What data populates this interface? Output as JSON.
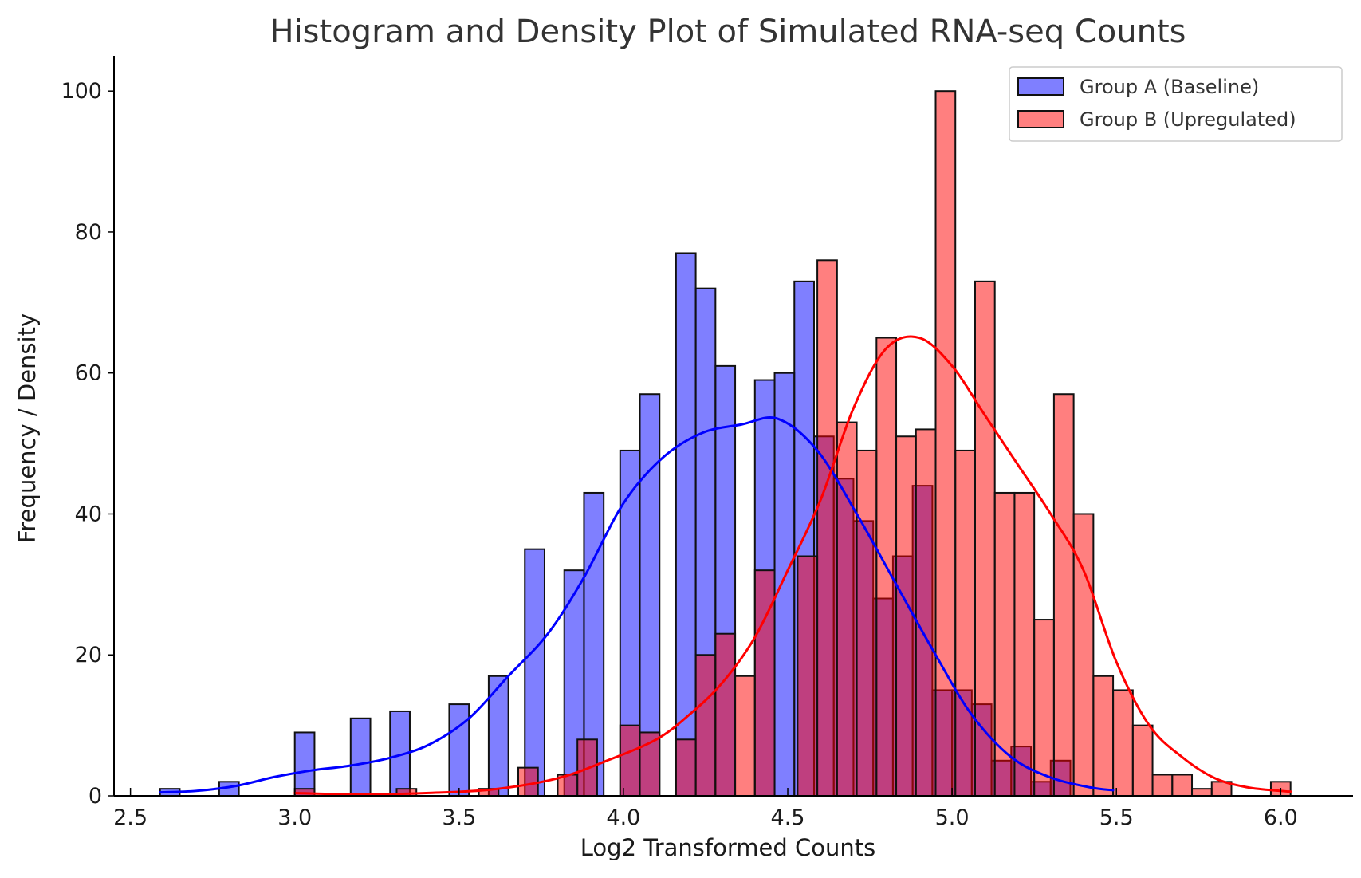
{
  "chart_data": {
    "type": "histogram",
    "title": "Histogram and Density Plot of Simulated RNA-seq Counts",
    "xlabel": "Log2 Transformed Counts",
    "ylabel": "Frequency / Density",
    "xlim": [
      2.45,
      6.22
    ],
    "ylim": [
      0,
      105
    ],
    "xticks": [
      "2.5",
      "3.0",
      "3.5",
      "4.0",
      "4.5",
      "5.0",
      "5.5",
      "6.0"
    ],
    "yticks": [
      "0",
      "20",
      "40",
      "60",
      "80",
      "100"
    ],
    "legend_position": "top-right",
    "series": [
      {
        "name": "Group A (Baseline)",
        "color": "#0000ff",
        "fill": "#8080ff",
        "edge": "#111111",
        "bins": [
          {
            "x0": 2.59,
            "x1": 2.65,
            "count": 1
          },
          {
            "x0": 2.77,
            "x1": 2.83,
            "count": 2
          },
          {
            "x0": 3.0,
            "x1": 3.06,
            "count": 9
          },
          {
            "x0": 3.17,
            "x1": 3.23,
            "count": 11
          },
          {
            "x0": 3.29,
            "x1": 3.35,
            "count": 12
          },
          {
            "x0": 3.47,
            "x1": 3.53,
            "count": 13
          },
          {
            "x0": 3.59,
            "x1": 3.65,
            "count": 17
          },
          {
            "x0": 3.7,
            "x1": 3.76,
            "count": 35
          },
          {
            "x0": 3.82,
            "x1": 3.88,
            "count": 32
          },
          {
            "x0": 3.88,
            "x1": 3.94,
            "count": 43
          },
          {
            "x0": 3.99,
            "x1": 4.05,
            "count": 49
          },
          {
            "x0": 4.05,
            "x1": 4.11,
            "count": 57
          },
          {
            "x0": 4.16,
            "x1": 4.22,
            "count": 77
          },
          {
            "x0": 4.22,
            "x1": 4.28,
            "count": 72
          },
          {
            "x0": 4.28,
            "x1": 4.34,
            "count": 61
          },
          {
            "x0": 4.4,
            "x1": 4.46,
            "count": 59
          },
          {
            "x0": 4.46,
            "x1": 4.52,
            "count": 60
          },
          {
            "x0": 4.52,
            "x1": 4.58,
            "count": 73
          },
          {
            "x0": 4.58,
            "x1": 4.64,
            "count": 51
          },
          {
            "x0": 4.64,
            "x1": 4.7,
            "count": 45
          },
          {
            "x0": 4.7,
            "x1": 4.76,
            "count": 39
          },
          {
            "x0": 4.76,
            "x1": 4.82,
            "count": 28
          },
          {
            "x0": 4.82,
            "x1": 4.88,
            "count": 34
          },
          {
            "x0": 4.88,
            "x1": 4.94,
            "count": 44
          },
          {
            "x0": 4.94,
            "x1": 5.0,
            "count": 15
          },
          {
            "x0": 5.0,
            "x1": 5.06,
            "count": 15
          },
          {
            "x0": 5.06,
            "x1": 5.12,
            "count": 13
          },
          {
            "x0": 5.12,
            "x1": 5.18,
            "count": 5
          },
          {
            "x0": 5.18,
            "x1": 5.24,
            "count": 7
          },
          {
            "x0": 5.24,
            "x1": 5.3,
            "count": 2
          },
          {
            "x0": 5.3,
            "x1": 5.36,
            "count": 5
          }
        ],
        "density": {
          "x": [
            2.59,
            2.7,
            2.82,
            2.94,
            3.05,
            3.17,
            3.29,
            3.41,
            3.53,
            3.65,
            3.77,
            3.88,
            4.0,
            4.12,
            4.24,
            4.36,
            4.47,
            4.59,
            4.71,
            4.83,
            4.95,
            5.06,
            5.18,
            5.3,
            5.42,
            5.49
          ],
          "y": [
            0.5,
            0.7,
            1.4,
            2.7,
            3.6,
            4.3,
            5.4,
            7.3,
            11.0,
            17.0,
            23.0,
            31.0,
            41.5,
            48.0,
            51.5,
            52.7,
            53.5,
            49.0,
            40.0,
            30.0,
            20.0,
            11.5,
            5.5,
            2.6,
            1.2,
            0.8
          ]
        }
      },
      {
        "name": "Group B (Upregulated)",
        "color": "#ff0000",
        "fill": "#ff8080",
        "edge": "#111111",
        "bins": [
          {
            "x0": 3.0,
            "x1": 3.06,
            "count": 1
          },
          {
            "x0": 3.31,
            "x1": 3.37,
            "count": 1
          },
          {
            "x0": 3.56,
            "x1": 3.62,
            "count": 1
          },
          {
            "x0": 3.68,
            "x1": 3.74,
            "count": 4
          },
          {
            "x0": 3.8,
            "x1": 3.86,
            "count": 3
          },
          {
            "x0": 3.86,
            "x1": 3.92,
            "count": 8
          },
          {
            "x0": 3.99,
            "x1": 4.05,
            "count": 10
          },
          {
            "x0": 4.05,
            "x1": 4.11,
            "count": 9
          },
          {
            "x0": 4.16,
            "x1": 4.22,
            "count": 8
          },
          {
            "x0": 4.22,
            "x1": 4.28,
            "count": 20
          },
          {
            "x0": 4.28,
            "x1": 4.34,
            "count": 23
          },
          {
            "x0": 4.34,
            "x1": 4.4,
            "count": 17
          },
          {
            "x0": 4.4,
            "x1": 4.46,
            "count": 32
          },
          {
            "x0": 4.53,
            "x1": 4.59,
            "count": 34
          },
          {
            "x0": 4.59,
            "x1": 4.65,
            "count": 76
          },
          {
            "x0": 4.65,
            "x1": 4.71,
            "count": 53
          },
          {
            "x0": 4.71,
            "x1": 4.77,
            "count": 49
          },
          {
            "x0": 4.77,
            "x1": 4.83,
            "count": 65
          },
          {
            "x0": 4.83,
            "x1": 4.89,
            "count": 51
          },
          {
            "x0": 4.89,
            "x1": 4.95,
            "count": 52
          },
          {
            "x0": 4.95,
            "x1": 5.01,
            "count": 100
          },
          {
            "x0": 5.01,
            "x1": 5.07,
            "count": 49
          },
          {
            "x0": 5.07,
            "x1": 5.13,
            "count": 73
          },
          {
            "x0": 5.13,
            "x1": 5.19,
            "count": 43
          },
          {
            "x0": 5.19,
            "x1": 5.25,
            "count": 43
          },
          {
            "x0": 5.25,
            "x1": 5.31,
            "count": 25
          },
          {
            "x0": 5.31,
            "x1": 5.37,
            "count": 57
          },
          {
            "x0": 5.37,
            "x1": 5.43,
            "count": 40
          },
          {
            "x0": 5.43,
            "x1": 5.49,
            "count": 17
          },
          {
            "x0": 5.49,
            "x1": 5.55,
            "count": 15
          },
          {
            "x0": 5.55,
            "x1": 5.61,
            "count": 10
          },
          {
            "x0": 5.61,
            "x1": 5.67,
            "count": 3
          },
          {
            "x0": 5.67,
            "x1": 5.73,
            "count": 3
          },
          {
            "x0": 5.73,
            "x1": 5.79,
            "count": 1
          },
          {
            "x0": 5.79,
            "x1": 5.85,
            "count": 2
          },
          {
            "x0": 5.97,
            "x1": 6.03,
            "count": 2
          }
        ],
        "density": {
          "x": [
            3.0,
            3.2,
            3.4,
            3.6,
            3.8,
            3.95,
            4.1,
            4.2,
            4.3,
            4.4,
            4.5,
            4.6,
            4.7,
            4.8,
            4.9,
            5.0,
            5.1,
            5.2,
            5.3,
            5.4,
            5.5,
            5.6,
            5.7,
            5.8,
            5.9,
            6.0,
            6.03
          ],
          "y": [
            0.4,
            0.2,
            0.4,
            0.9,
            2.5,
            5.0,
            8.0,
            11.5,
            16.0,
            22.5,
            32.0,
            42.0,
            55.0,
            63.5,
            65.0,
            61.0,
            54.0,
            47.0,
            40.0,
            32.0,
            19.0,
            10.0,
            5.5,
            2.5,
            1.2,
            0.7,
            0.6
          ]
        }
      }
    ]
  }
}
